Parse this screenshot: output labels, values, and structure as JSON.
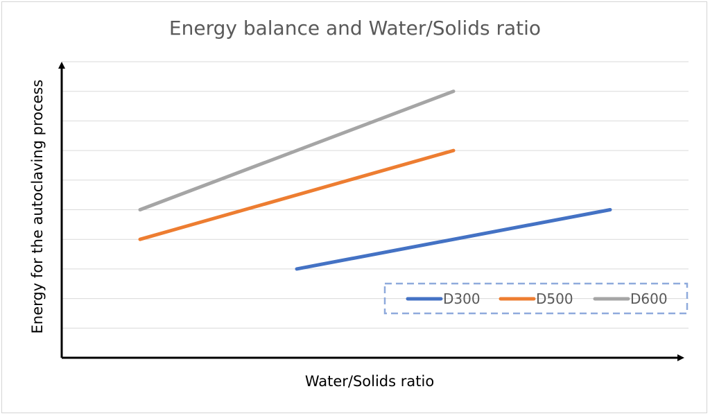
{
  "chart_data": {
    "type": "line",
    "title": "Energy balance and Water/Solids ratio",
    "xlabel": "Water/Solids ratio",
    "ylabel": "Energy for the autoclaving process",
    "xlim": [
      0,
      8
    ],
    "ylim": [
      0,
      10
    ],
    "grid": true,
    "legend_position": "bottom-right",
    "series": [
      {
        "name": "D300",
        "color": "#4472C4",
        "x": [
          3,
          7
        ],
        "y": [
          3,
          5
        ]
      },
      {
        "name": "D500",
        "color": "#ED7D31",
        "x": [
          1,
          5
        ],
        "y": [
          4,
          7
        ]
      },
      {
        "name": "D600",
        "color": "#A5A5A5",
        "x": [
          1,
          5
        ],
        "y": [
          5,
          9
        ]
      }
    ]
  }
}
